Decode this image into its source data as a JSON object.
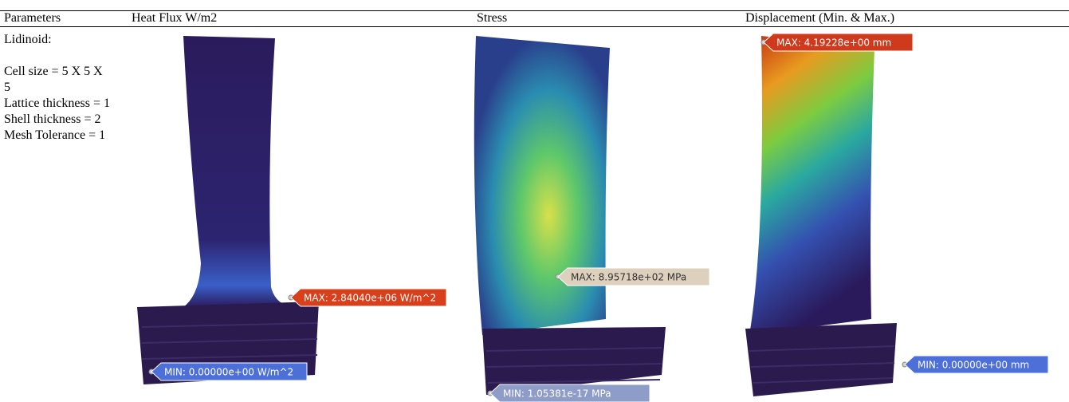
{
  "table": {
    "headers": [
      "Parameters",
      "Heat Flux W/m2",
      "Stress",
      "Displacement (Min. & Max.)"
    ],
    "parameters": [
      "Lidinoid:",
      "Cell size = 5 X 5 X 5",
      "Lattice thickness = 1",
      "Shell thickness = 2",
      "Mesh Tolerance = 1"
    ],
    "heat_flux": {
      "max": "MAX: 2.84040e+06 W/m^2",
      "min": "MIN: 0.00000e+00 W/m^2"
    },
    "stress": {
      "max": "MAX: 8.95718e+02 MPa",
      "min": "MIN: 1.05381e-17 MPa"
    },
    "displacement": {
      "max": "MAX: 4.19228e+00 mm",
      "min": "MIN: 0.00000e+00 mm"
    }
  }
}
